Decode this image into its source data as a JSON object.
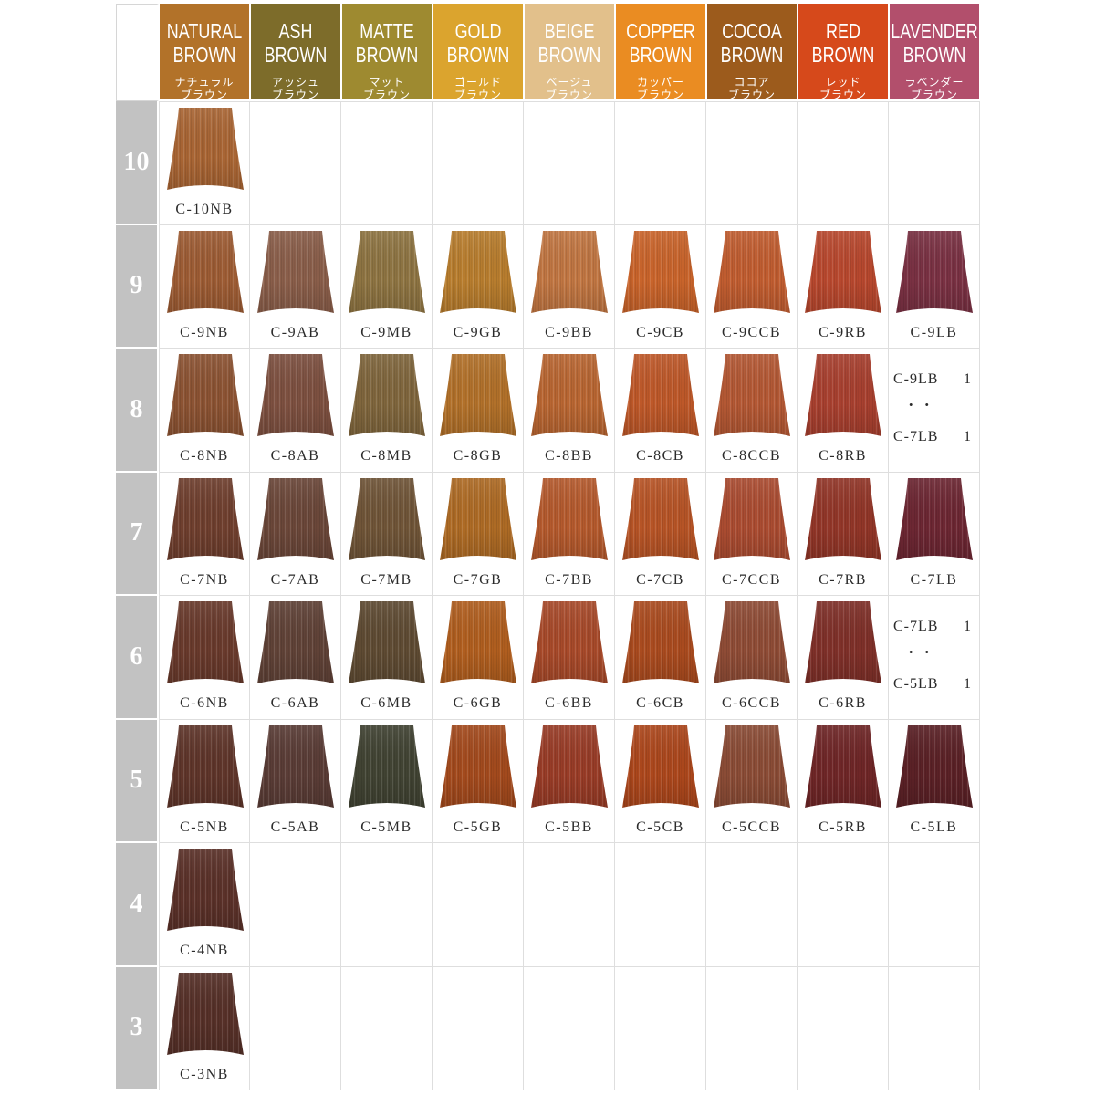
{
  "columns": [
    {
      "title_line1": "NATURAL",
      "title_line2": "BROWN",
      "jp_line1": "ナチュラル",
      "jp_line2": "ブラウン",
      "color": "#b27229"
    },
    {
      "title_line1": "ASH",
      "title_line2": "BROWN",
      "jp_line1": "アッシュ",
      "jp_line2": "ブラウン",
      "color": "#7d6c2a"
    },
    {
      "title_line1": "MATTE",
      "title_line2": "BROWN",
      "jp_line1": "マット",
      "jp_line2": "ブラウン",
      "color": "#9e8a30"
    },
    {
      "title_line1": "GOLD",
      "title_line2": "BROWN",
      "jp_line1": "ゴールド",
      "jp_line2": "ブラウン",
      "color": "#dba42e"
    },
    {
      "title_line1": "BEIGE",
      "title_line2": "BROWN",
      "jp_line1": "ベージュ",
      "jp_line2": "ブラウン",
      "color": "#e2c08b"
    },
    {
      "title_line1": "COPPER",
      "title_line2": "BROWN",
      "jp_line1": "カッパー",
      "jp_line2": "ブラウン",
      "color": "#ea8c22"
    },
    {
      "title_line1": "COCOA",
      "title_line2": "BROWN",
      "jp_line1": "ココア",
      "jp_line2": "ブラウン",
      "color": "#9c5b1c"
    },
    {
      "title_line1": "RED",
      "title_line2": "BROWN",
      "jp_line1": "レッド",
      "jp_line2": "ブラウン",
      "color": "#d6491b"
    },
    {
      "title_line1": "LAVENDER",
      "title_line2": "BROWN",
      "jp_line1": "ラベンダー",
      "jp_line2": "ブラウン",
      "color": "#b24f6c"
    }
  ],
  "rows": [
    {
      "level": "10",
      "cells": [
        {
          "label": "C-10NB",
          "color": "#a96534"
        },
        null,
        null,
        null,
        null,
        null,
        null,
        null,
        null
      ]
    },
    {
      "level": "9",
      "cells": [
        {
          "label": "C-9NB",
          "color": "#9d5c34"
        },
        {
          "label": "C-9AB",
          "color": "#8a5e4a"
        },
        {
          "label": "C-9MB",
          "color": "#8e7442"
        },
        {
          "label": "C-9GB",
          "color": "#b87d2e"
        },
        {
          "label": "C-9BB",
          "color": "#c17642"
        },
        {
          "label": "C-9CB",
          "color": "#c9642b"
        },
        {
          "label": "C-9CCB",
          "color": "#c15d30"
        },
        {
          "label": "C-9RB",
          "color": "#b8482e"
        },
        {
          "label": "C-9LB",
          "color": "#7a3143"
        }
      ]
    },
    {
      "level": "8",
      "cells": [
        {
          "label": "C-8NB",
          "color": "#8c5333"
        },
        {
          "label": "C-8AB",
          "color": "#7d5040"
        },
        {
          "label": "C-8MB",
          "color": "#80663d"
        },
        {
          "label": "C-8GB",
          "color": "#b2712a"
        },
        {
          "label": "C-8BB",
          "color": "#b96632"
        },
        {
          "label": "C-8CB",
          "color": "#be5829"
        },
        {
          "label": "C-8CCB",
          "color": "#b45834"
        },
        {
          "label": "C-8RB",
          "color": "#a8402f"
        },
        {
          "mix": {
            "code1": "C-9LB",
            "ratio1": "1",
            "separator": "・ ・",
            "code2": "C-7LB",
            "ratio2": "1"
          }
        }
      ]
    },
    {
      "level": "7",
      "cells": [
        {
          "label": "C-7NB",
          "color": "#6f3f2e"
        },
        {
          "label": "C-7AB",
          "color": "#6b4739"
        },
        {
          "label": "C-7MB",
          "color": "#705538"
        },
        {
          "label": "C-7GB",
          "color": "#ae6b25"
        },
        {
          "label": "C-7BB",
          "color": "#b55a2d"
        },
        {
          "label": "C-7CB",
          "color": "#b75426"
        },
        {
          "label": "C-7CCB",
          "color": "#ab4c31"
        },
        {
          "label": "C-7RB",
          "color": "#923628"
        },
        {
          "label": "C-7LB",
          "color": "#6d2733"
        }
      ]
    },
    {
      "level": "6",
      "cells": [
        {
          "label": "C-6NB",
          "color": "#693a2c"
        },
        {
          "label": "C-6AB",
          "color": "#604237"
        },
        {
          "label": "C-6MB",
          "color": "#5f4b33"
        },
        {
          "label": "C-6GB",
          "color": "#b05e1f"
        },
        {
          "label": "C-6BB",
          "color": "#a84a2a"
        },
        {
          "label": "C-6CB",
          "color": "#aa4b1f"
        },
        {
          "label": "C-6CCB",
          "color": "#8f4c36"
        },
        {
          "label": "C-6RB",
          "color": "#7f3029"
        },
        {
          "mix": {
            "code1": "C-7LB",
            "ratio1": "1",
            "separator": "・ ・",
            "code2": "C-5LB",
            "ratio2": "1"
          }
        }
      ]
    },
    {
      "level": "5",
      "cells": [
        {
          "label": "C-5NB",
          "color": "#5f352a"
        },
        {
          "label": "C-5AB",
          "color": "#5a3c36"
        },
        {
          "label": "C-5MB",
          "color": "#414333"
        },
        {
          "label": "C-5GB",
          "color": "#a34a1d"
        },
        {
          "label": "C-5BB",
          "color": "#993c27"
        },
        {
          "label": "C-5CB",
          "color": "#ac471c"
        },
        {
          "label": "C-5CCB",
          "color": "#8b4c36"
        },
        {
          "label": "C-5RB",
          "color": "#6f2627"
        },
        {
          "label": "C-5LB",
          "color": "#5b2126"
        }
      ]
    },
    {
      "level": "4",
      "cells": [
        {
          "label": "C-4NB",
          "color": "#5b3129"
        },
        null,
        null,
        null,
        null,
        null,
        null,
        null,
        null
      ]
    },
    {
      "level": "3",
      "cells": [
        {
          "label": "C-3NB",
          "color": "#563028"
        },
        null,
        null,
        null,
        null,
        null,
        null,
        null,
        null
      ]
    }
  ]
}
